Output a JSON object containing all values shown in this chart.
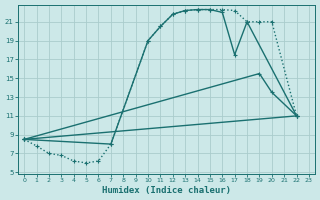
{
  "xlabel": "Humidex (Indice chaleur)",
  "bg_color": "#cce8e8",
  "grid_color": "#aacccc",
  "line_color": "#1a7070",
  "xlim": [
    -0.5,
    23.5
  ],
  "ylim": [
    4.8,
    22.8
  ],
  "xticks": [
    0,
    1,
    2,
    3,
    4,
    5,
    6,
    7,
    8,
    9,
    10,
    11,
    12,
    13,
    14,
    15,
    16,
    17,
    18,
    19,
    20,
    21,
    22,
    23
  ],
  "yticks": [
    5,
    7,
    9,
    11,
    13,
    15,
    17,
    19,
    21
  ],
  "curves": [
    {
      "x": [
        0,
        1,
        2,
        3,
        4,
        5,
        6,
        7,
        10,
        11,
        12,
        13,
        14,
        15,
        16,
        17,
        18,
        19,
        20,
        22
      ],
      "y": [
        8.5,
        7.8,
        7.0,
        6.8,
        6.2,
        6.0,
        6.2,
        8.0,
        19.0,
        20.5,
        21.8,
        22.2,
        22.3,
        22.3,
        22.3,
        22.2,
        21.0,
        21.0,
        21.0,
        11.0
      ],
      "ls": ":",
      "lw": 1.0,
      "marker": "+"
    },
    {
      "x": [
        0,
        7,
        10,
        11,
        12,
        13,
        14,
        15,
        16,
        17,
        18,
        22
      ],
      "y": [
        8.5,
        8.0,
        19.0,
        20.5,
        21.8,
        22.2,
        22.3,
        22.3,
        22.0,
        17.5,
        21.0,
        11.0
      ],
      "ls": "-",
      "lw": 1.0,
      "marker": "+"
    },
    {
      "x": [
        0,
        19,
        20,
        22
      ],
      "y": [
        8.5,
        15.5,
        13.5,
        11.0
      ],
      "ls": "-",
      "lw": 1.0,
      "marker": "+"
    },
    {
      "x": [
        0,
        22
      ],
      "y": [
        8.5,
        11.0
      ],
      "ls": "-",
      "lw": 1.0,
      "marker": "+"
    }
  ]
}
